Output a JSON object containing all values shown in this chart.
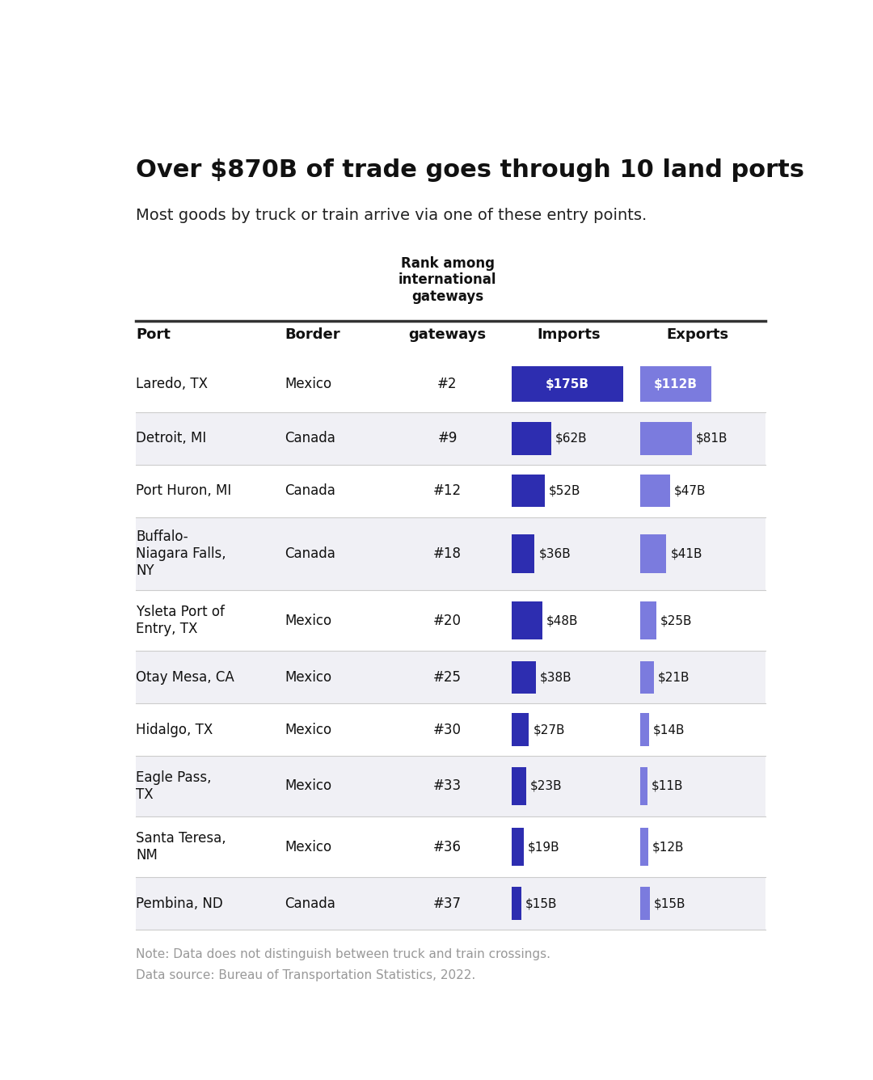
{
  "title": "Over $870B of trade goes through 10 land ports",
  "subtitle": "Most goods by truck or train arrive via one of these entry points.",
  "col_headers_rank": "Rank among\ninternational\ngateways",
  "col_header_port": "Port",
  "col_header_border": "Border",
  "col_header_imports": "Imports",
  "col_header_exports": "Exports",
  "rows": [
    {
      "port": "Laredo, TX",
      "border": "Mexico",
      "rank": "#2",
      "imports": 175,
      "exports": 112
    },
    {
      "port": "Detroit, MI",
      "border": "Canada",
      "rank": "#9",
      "imports": 62,
      "exports": 81
    },
    {
      "port": "Port Huron, MI",
      "border": "Canada",
      "rank": "#12",
      "imports": 52,
      "exports": 47
    },
    {
      "port": "Buffalo-\nNiagara Falls,\nNY",
      "border": "Canada",
      "rank": "#18",
      "imports": 36,
      "exports": 41
    },
    {
      "port": "Ysleta Port of\nEntry, TX",
      "border": "Mexico",
      "rank": "#20",
      "imports": 48,
      "exports": 25
    },
    {
      "port": "Otay Mesa, CA",
      "border": "Mexico",
      "rank": "#25",
      "imports": 38,
      "exports": 21
    },
    {
      "port": "Hidalgo, TX",
      "border": "Mexico",
      "rank": "#30",
      "imports": 27,
      "exports": 14
    },
    {
      "port": "Eagle Pass,\nTX",
      "border": "Mexico",
      "rank": "#33",
      "imports": 23,
      "exports": 11
    },
    {
      "port": "Santa Teresa,\nNM",
      "border": "Mexico",
      "rank": "#36",
      "imports": 19,
      "exports": 12
    },
    {
      "port": "Pembina, ND",
      "border": "Canada",
      "rank": "#37",
      "imports": 15,
      "exports": 15
    }
  ],
  "import_color": "#2d2db0",
  "export_color": "#7b7bde",
  "max_bar_value": 175,
  "note1": "Note: Data does not distinguish between truck and train crossings.",
  "note2": "Data source: Bureau of Transportation Statistics, 2022.",
  "background_color": "#ffffff",
  "alt_row_color": "#f0f0f5",
  "header_line_color": "#333333",
  "row_line_color": "#cccccc"
}
